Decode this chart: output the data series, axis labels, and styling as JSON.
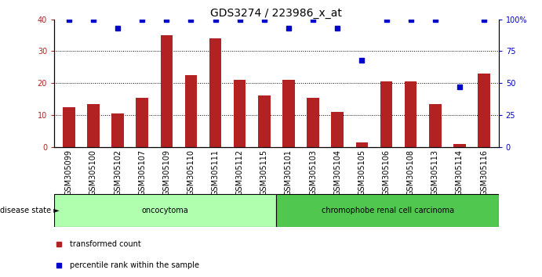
{
  "title": "GDS3274 / 223986_x_at",
  "categories": [
    "GSM305099",
    "GSM305100",
    "GSM305102",
    "GSM305107",
    "GSM305109",
    "GSM305110",
    "GSM305111",
    "GSM305112",
    "GSM305115",
    "GSM305101",
    "GSM305103",
    "GSM305104",
    "GSM305105",
    "GSM305106",
    "GSM305108",
    "GSM305113",
    "GSM305114",
    "GSM305116"
  ],
  "red_values": [
    12.5,
    13.5,
    10.5,
    15.5,
    35.0,
    22.5,
    34.0,
    21.0,
    16.0,
    21.0,
    15.5,
    11.0,
    1.5,
    20.5,
    20.5,
    13.5,
    1.0,
    23.0
  ],
  "blue_values": [
    100,
    100,
    93,
    100,
    100,
    100,
    100,
    100,
    100,
    93,
    100,
    93,
    68,
    100,
    100,
    100,
    47,
    100
  ],
  "oncocytoma_count": 9,
  "chromophobe_count": 9,
  "ylim_left": [
    0,
    40
  ],
  "ylim_right": [
    0,
    100
  ],
  "yticks_left": [
    0,
    10,
    20,
    30,
    40
  ],
  "yticks_right": [
    0,
    25,
    50,
    75,
    100
  ],
  "yticklabels_right": [
    "0",
    "25",
    "50",
    "75",
    "100%"
  ],
  "bar_color": "#B22222",
  "dot_color": "#0000CC",
  "oncocytoma_color": "#AFFFAF",
  "chromophobe_color": "#50C850",
  "group_label_onco": "oncocytoma",
  "group_label_chromo": "chromophobe renal cell carcinoma",
  "disease_state_label": "disease state",
  "legend_red": "transformed count",
  "legend_blue": "percentile rank within the sample",
  "background_color": "#FFFFFF",
  "tick_label_area_color": "#CCCCCC",
  "title_fontsize": 10,
  "axis_fontsize": 7,
  "label_fontsize": 8
}
